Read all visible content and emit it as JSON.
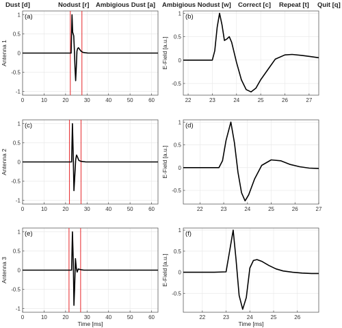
{
  "menu": {
    "items": [
      {
        "label": "Dust [d]"
      },
      {
        "label": "Nodust [r]"
      },
      {
        "label": "Ambigious Dust [a]"
      },
      {
        "label": "Ambigious Nodust [w]"
      },
      {
        "label": "Correct [c]"
      },
      {
        "label": "Repeat [t]"
      },
      {
        "label": "Quit [q]"
      }
    ]
  },
  "colors": {
    "trace": "#000000",
    "marker": "#e8373a",
    "grid": "#e6e6e6",
    "axis": "#444444"
  },
  "chart_data": [
    {
      "type": "line",
      "panel_label": "(a)",
      "ylabel": "Antenna 1",
      "xlabel": "",
      "xlim": [
        0,
        63
      ],
      "ylim": [
        -1.1,
        1.1
      ],
      "xticks": [
        0,
        10,
        20,
        30,
        40,
        50,
        60
      ],
      "yticks": [
        -1,
        -0.5,
        0,
        0.5,
        1
      ],
      "markers": [
        22.2,
        27.6
      ],
      "x": [
        0,
        22.6,
        23.0,
        23.3,
        23.8,
        24.1,
        24.4,
        24.7,
        25.0,
        25.3,
        25.6,
        26.0,
        26.5,
        27.2,
        28.0,
        29.0,
        30.5,
        63
      ],
      "y": [
        0,
        0,
        1.0,
        0.55,
        0.45,
        0.1,
        -0.4,
        -0.72,
        -0.35,
        0.05,
        0.12,
        0.14,
        0.1,
        0.05,
        0.02,
        0.01,
        0,
        0
      ]
    },
    {
      "type": "line",
      "panel_label": "(b)",
      "ylabel": "E-Field [a.u.]",
      "xlabel": "",
      "xlim": [
        21.8,
        27.4
      ],
      "ylim": [
        -0.75,
        1.05
      ],
      "xticks": [
        22,
        23,
        24,
        25,
        26,
        27
      ],
      "yticks": [
        -0.5,
        0,
        0.5,
        1
      ],
      "markers": [],
      "x": [
        21.8,
        23.0,
        23.1,
        23.2,
        23.3,
        23.4,
        23.5,
        23.6,
        23.7,
        23.8,
        24.0,
        24.2,
        24.4,
        24.6,
        24.8,
        25.0,
        25.3,
        25.6,
        26.0,
        26.3,
        26.7,
        27.0,
        27.4
      ],
      "y": [
        0,
        0,
        0.2,
        0.7,
        1.0,
        0.75,
        0.42,
        0.45,
        0.5,
        0.38,
        -0.05,
        -0.42,
        -0.63,
        -0.68,
        -0.6,
        -0.42,
        -0.2,
        0.02,
        0.11,
        0.12,
        0.1,
        0.08,
        0.05
      ]
    },
    {
      "type": "line",
      "panel_label": "(c)",
      "ylabel": "Antenna 2",
      "xlabel": "",
      "xlim": [
        0,
        63
      ],
      "ylim": [
        -1.1,
        1.1
      ],
      "xticks": [
        0,
        10,
        20,
        30,
        40,
        50,
        60
      ],
      "yticks": [
        -1,
        -0.5,
        0,
        0.5,
        1
      ],
      "markers": [
        21.8,
        27.2
      ],
      "x": [
        0,
        22.8,
        23.2,
        23.5,
        23.9,
        24.3,
        24.7,
        25.1,
        25.6,
        26.2,
        27.0,
        28.0,
        29.5,
        63
      ],
      "y": [
        0,
        0,
        1.0,
        0.3,
        -0.75,
        -0.35,
        0.05,
        0.18,
        0.12,
        0.04,
        0.02,
        0.01,
        0,
        0
      ]
    },
    {
      "type": "line",
      "panel_label": "(d)",
      "ylabel": "E-Field [a.u.]",
      "xlabel": "",
      "xlim": [
        21.3,
        27.0
      ],
      "ylim": [
        -0.8,
        1.05
      ],
      "xticks": [
        22,
        23,
        24,
        25,
        26,
        27
      ],
      "yticks": [
        -0.5,
        0,
        0.5,
        1
      ],
      "markers": [],
      "x": [
        21.3,
        22.8,
        22.95,
        23.1,
        23.3,
        23.45,
        23.6,
        23.75,
        23.9,
        24.05,
        24.3,
        24.6,
        25.0,
        25.4,
        25.8,
        26.2,
        26.6,
        27.0
      ],
      "y": [
        0,
        0,
        0.15,
        0.6,
        1.0,
        0.55,
        -0.1,
        -0.55,
        -0.73,
        -0.6,
        -0.25,
        0.05,
        0.17,
        0.15,
        0.07,
        0.02,
        -0.01,
        -0.02
      ]
    },
    {
      "type": "line",
      "panel_label": "(e)",
      "ylabel": "Antenna 3",
      "xlabel": "Time [ms]",
      "xlim": [
        0,
        63
      ],
      "ylim": [
        -1.1,
        1.1
      ],
      "xticks": [
        0,
        10,
        20,
        30,
        40,
        50,
        60
      ],
      "yticks": [
        -1,
        -0.5,
        0,
        0.5,
        1
      ],
      "markers": [
        21.6,
        27.0
      ],
      "x": [
        0,
        22.8,
        23.2,
        23.6,
        23.9,
        24.2,
        24.6,
        25.0,
        25.4,
        25.9,
        26.5,
        27.3,
        28.5,
        30.0,
        63
      ],
      "y": [
        0,
        0,
        1.0,
        0.2,
        -0.92,
        -0.45,
        0.3,
        0.05,
        -0.05,
        0.03,
        0.02,
        0.01,
        0,
        0,
        0
      ]
    },
    {
      "type": "line",
      "panel_label": "(f)",
      "ylabel": "E-Field [a.u.]",
      "xlabel": "Time [ms]",
      "xlim": [
        21.2,
        26.9
      ],
      "ylim": [
        -0.95,
        1.05
      ],
      "xticks": [
        22,
        23,
        24,
        25,
        26
      ],
      "yticks": [
        -0.5,
        0,
        0.5,
        1
      ],
      "markers": [],
      "x": [
        21.2,
        22.5,
        23.0,
        23.15,
        23.3,
        23.42,
        23.55,
        23.7,
        23.85,
        24.0,
        24.15,
        24.3,
        24.5,
        24.8,
        25.1,
        25.4,
        25.8,
        26.2,
        26.6,
        26.9
      ],
      "y": [
        0,
        0,
        0.01,
        0.5,
        1.0,
        0.3,
        -0.55,
        -0.88,
        -0.6,
        0.1,
        0.28,
        0.3,
        0.26,
        0.16,
        0.08,
        0.03,
        0.0,
        -0.02,
        -0.03,
        -0.03
      ]
    }
  ]
}
